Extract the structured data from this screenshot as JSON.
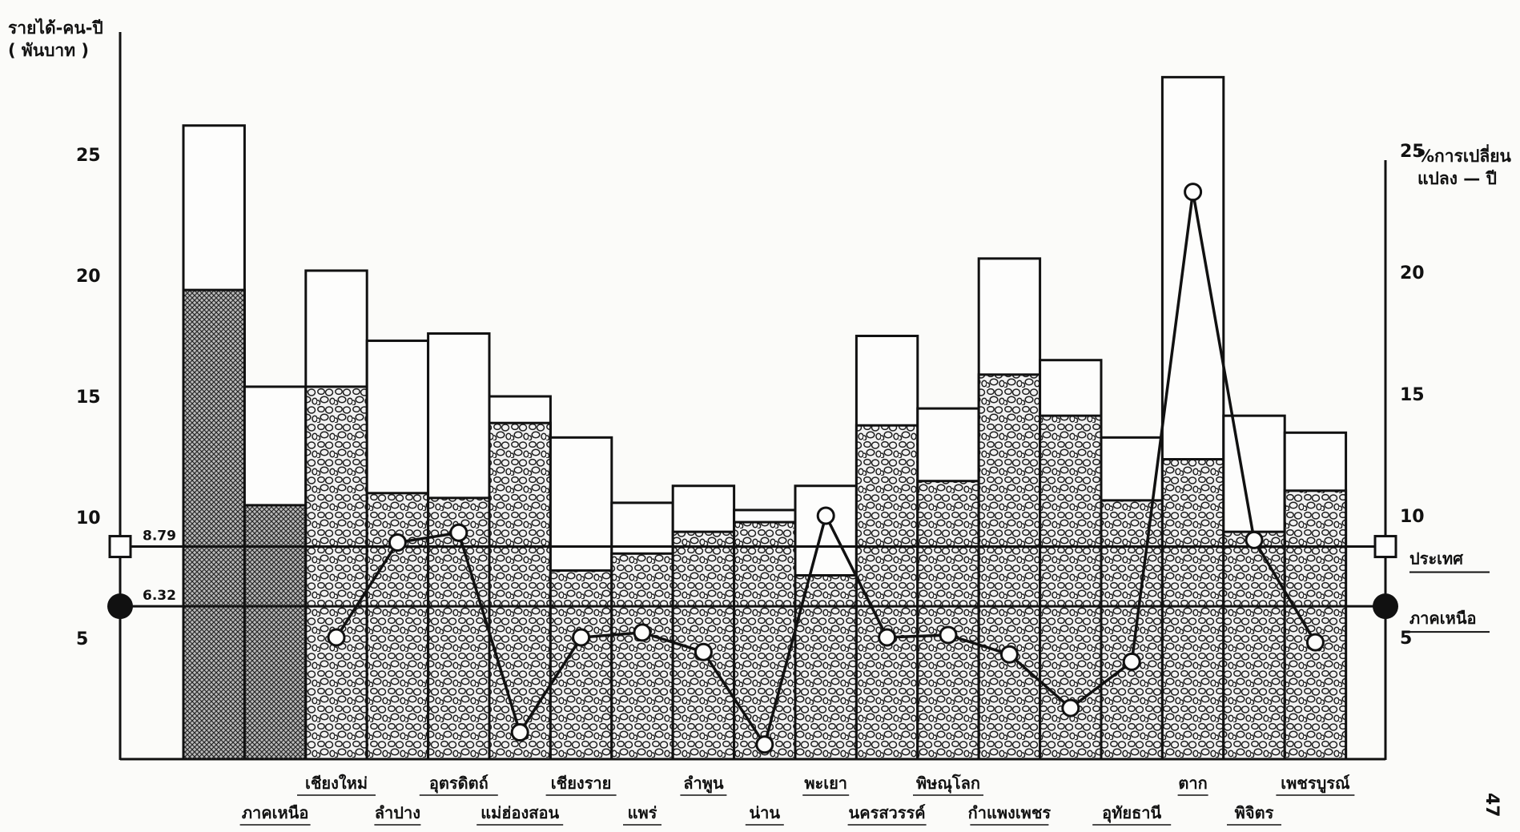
{
  "chart_data": {
    "type": "bar",
    "categories": [
      "ภาคเหนือ",
      "ภาคเหนือ",
      "เชียงใหม่",
      "ลำปาง",
      "อุตรดิตถ์",
      "แม่ฮ่องสอน",
      "เชียงราย",
      "แพร่",
      "ลำพูน",
      "น่าน",
      "พะเยา",
      "นครสวรรค์",
      "พิษณุโลก",
      "กำแพงเพชร",
      "เพชรบูรณ์",
      "อุทัยธานี",
      "ตาก",
      "พิจิตร",
      "เพชรบูรณ์"
    ],
    "category_labels": [
      {
        "text": "",
        "row": 2
      },
      {
        "text": "ภาคเหนือ",
        "row": 2
      },
      {
        "text": "เชียงใหม่",
        "row": 1
      },
      {
        "text": "ลำปาง",
        "row": 2
      },
      {
        "text": "อุตรดิตถ์",
        "row": 1
      },
      {
        "text": "แม่ฮ่องสอน",
        "row": 2
      },
      {
        "text": "เชียงราย",
        "row": 1
      },
      {
        "text": "แพร่",
        "row": 2
      },
      {
        "text": "ลำพูน",
        "row": 1
      },
      {
        "text": "น่าน",
        "row": 2
      },
      {
        "text": "พะเยา",
        "row": 1
      },
      {
        "text": "นครสวรรค์",
        "row": 2
      },
      {
        "text": "พิษณุโลก",
        "row": 1
      },
      {
        "text": "กำแพงเพชร",
        "row": 2
      },
      {
        "text": "",
        "row": 1
      },
      {
        "text": "อุทัยธานี",
        "row": 2
      },
      {
        "text": "ตาก",
        "row": 1
      },
      {
        "text": "พิจิตร",
        "row": 2
      },
      {
        "text": "เพชรบูรณ์",
        "row": 1
      }
    ],
    "series": [
      {
        "values": [
          19.4,
          10.5,
          15.4,
          11.0,
          10.8,
          13.9,
          7.8,
          8.5,
          9.4,
          9.8,
          7.6,
          13.8,
          11.5,
          15.9,
          14.2,
          10.7,
          12.4,
          9.4,
          11.1
        ]
      },
      {
        "values": [
          26.2,
          15.4,
          20.2,
          17.3,
          17.6,
          15.0,
          13.3,
          10.6,
          11.3,
          10.3,
          11.3,
          17.5,
          14.5,
          20.7,
          16.5,
          13.3,
          28.2,
          14.2,
          13.5
        ]
      },
      {
        "values": [
          null,
          null,
          5.0,
          8.9,
          9.3,
          1.1,
          5.0,
          5.2,
          4.4,
          0.6,
          10.0,
          5.0,
          5.1,
          4.3,
          2.1,
          4.0,
          23.3,
          9.0,
          4.8
        ]
      }
    ],
    "reference_lines": [
      {
        "value": 8.79,
        "label": "ประเทศ",
        "value_label": "8.79"
      },
      {
        "value": 6.32,
        "label": "ภาคเหนือ",
        "value_label": "6.32"
      }
    ],
    "ylabel": "รายได้-คน-ปี ( พันบาท )",
    "y2label": "การเปลี่ยนแปลง — ปี",
    "y2_unit": "%",
    "ylim": [
      0,
      30
    ],
    "y2lim": [
      0,
      30
    ],
    "yticks": [
      5,
      10,
      15,
      20,
      25
    ],
    "y2ticks": [
      5,
      10,
      15,
      20,
      25
    ],
    "grid": false,
    "legend": "none"
  },
  "page_number": "47"
}
